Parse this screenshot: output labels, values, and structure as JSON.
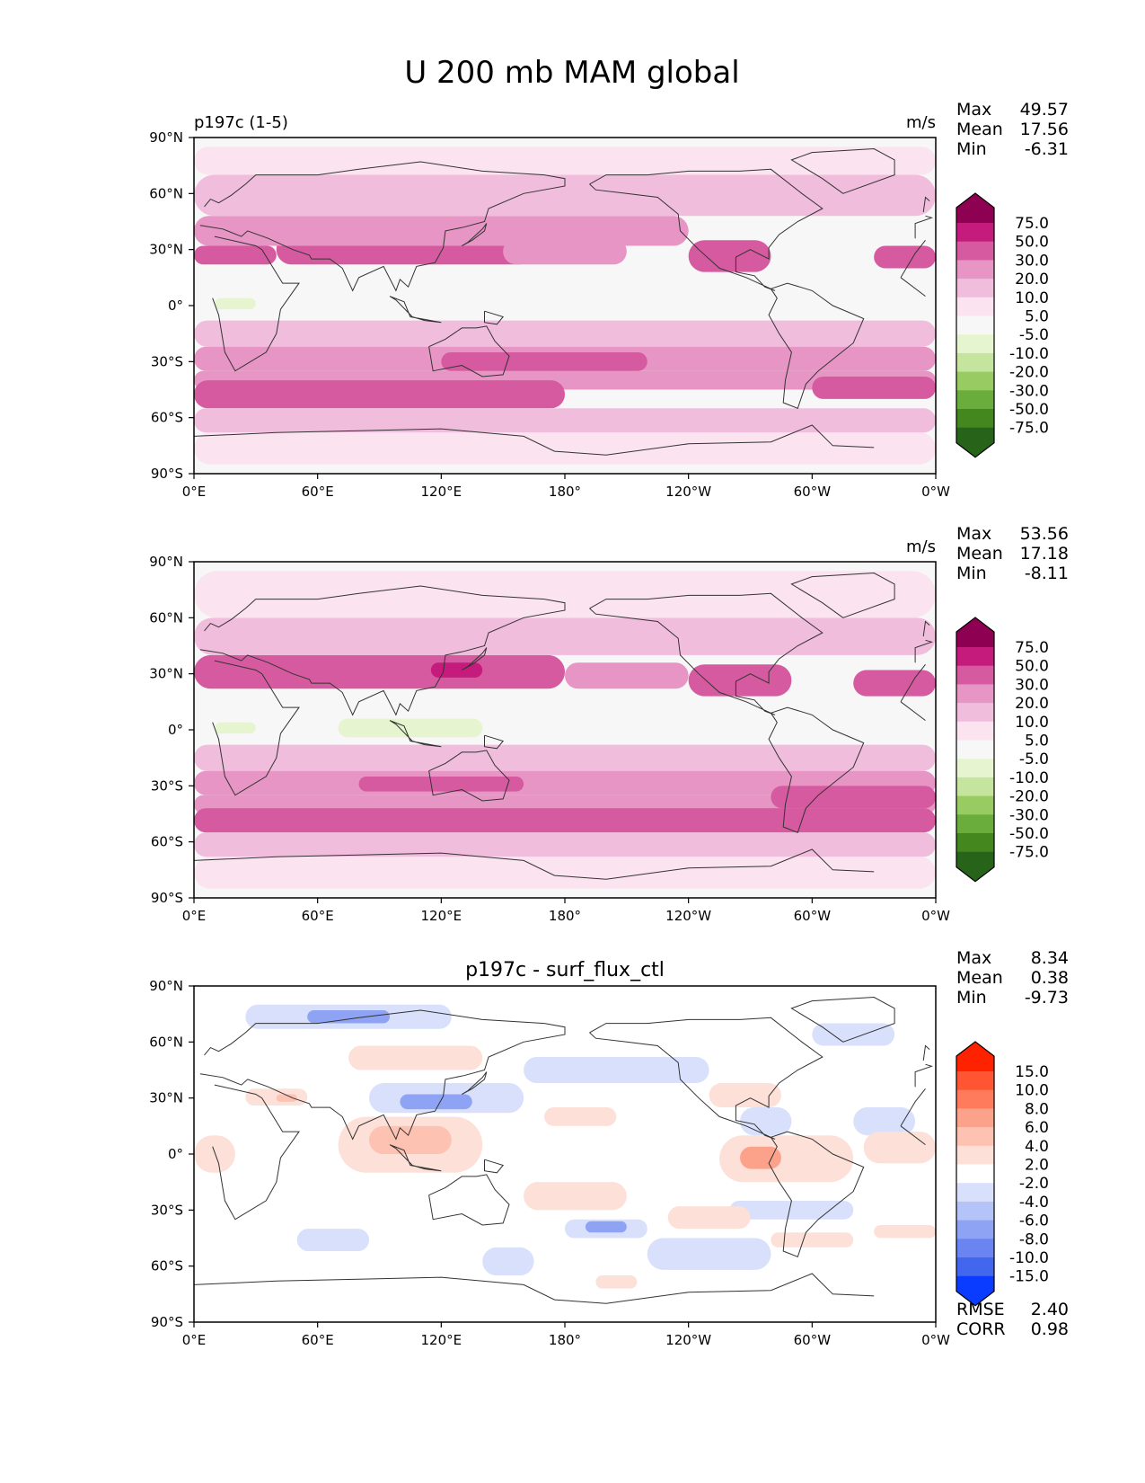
{
  "figure_title": "U 200 mb MAM global",
  "colors": {
    "land_outline": "#333333",
    "axis": "#000000",
    "map_bg_abs": "#f7f7f7",
    "map_bg_diff": "#ffffff"
  },
  "chart_data": [
    {
      "type": "heatmap",
      "panel": "test",
      "title_left": "p197c (1-5)",
      "title_center": "",
      "units": "m/s",
      "xlabel": "",
      "ylabel": "",
      "x_ticks": [
        "0°E",
        "60°E",
        "120°E",
        "180°",
        "120°W",
        "60°W",
        "0°W"
      ],
      "y_ticks": [
        "90°N",
        "60°N",
        "30°N",
        "0°",
        "30°S",
        "60°S",
        "90°S"
      ],
      "xlim": [
        0,
        360
      ],
      "ylim": [
        -90,
        90
      ],
      "stats": [
        {
          "label": "Max",
          "value": "49.57"
        },
        {
          "label": "Mean",
          "value": "17.56"
        },
        {
          "label": "Min",
          "value": "-6.31"
        }
      ],
      "colorbar": {
        "levels": [
          "75.0",
          "50.0",
          "30.0",
          "20.0",
          "10.0",
          "5.0",
          "-5.0",
          "-10.0",
          "-20.0",
          "-30.0",
          "-50.0",
          "-75.0"
        ],
        "colors": [
          "#8e0152",
          "#c51b7d",
          "#d55aa0",
          "#e695c4",
          "#f1bddc",
          "#fbe3f0",
          "#f7f7f7",
          "#e6f5d0",
          "#c5e59f",
          "#98cc62",
          "#6aad3c",
          "#44871f",
          "#276419"
        ],
        "extend": "both"
      },
      "fields": [
        {
          "lon": [
            40,
            165
          ],
          "lat": [
            22,
            38
          ],
          "value": 35
        },
        {
          "lon": [
            0,
            40
          ],
          "lat": [
            22,
            32
          ],
          "value": 35
        },
        {
          "lon": [
            150,
            210
          ],
          "lat": [
            22,
            36
          ],
          "value": 25
        },
        {
          "lon": [
            240,
            280
          ],
          "lat": [
            18,
            35
          ],
          "value": 35
        },
        {
          "lon": [
            330,
            360
          ],
          "lat": [
            20,
            32
          ],
          "value": 35
        },
        {
          "lon": [
            0,
            240
          ],
          "lat": [
            32,
            48
          ],
          "value": 25
        },
        {
          "lon": [
            0,
            360
          ],
          "lat": [
            48,
            70
          ],
          "value": 15
        },
        {
          "lon": [
            0,
            360
          ],
          "lat": [
            70,
            85
          ],
          "value": 7
        },
        {
          "lon": [
            0,
            360
          ],
          "lat": [
            -8,
            12
          ],
          "value": 0
        },
        {
          "lon": [
            10,
            30
          ],
          "lat": [
            -2,
            4
          ],
          "value": -7
        },
        {
          "lon": [
            0,
            360
          ],
          "lat": [
            -22,
            -8
          ],
          "value": 15
        },
        {
          "lon": [
            0,
            360
          ],
          "lat": [
            -35,
            -22
          ],
          "value": 25
        },
        {
          "lon": [
            0,
            360
          ],
          "lat": [
            -45,
            -35
          ],
          "value": 25
        },
        {
          "lon": [
            0,
            180
          ],
          "lat": [
            -55,
            -40
          ],
          "value": 35
        },
        {
          "lon": [
            120,
            220
          ],
          "lat": [
            -35,
            -25
          ],
          "value": 35
        },
        {
          "lon": [
            300,
            360
          ],
          "lat": [
            -50,
            -38
          ],
          "value": 35
        },
        {
          "lon": [
            0,
            360
          ],
          "lat": [
            -68,
            -55
          ],
          "value": 15
        },
        {
          "lon": [
            0,
            360
          ],
          "lat": [
            -85,
            -68
          ],
          "value": 7
        }
      ]
    },
    {
      "type": "heatmap",
      "panel": "reference",
      "title_left": "",
      "title_center": "",
      "units": "m/s",
      "xlabel": "",
      "ylabel": "",
      "x_ticks": [
        "0°E",
        "60°E",
        "120°E",
        "180°",
        "120°W",
        "60°W",
        "0°W"
      ],
      "y_ticks": [
        "90°N",
        "60°N",
        "30°N",
        "0°",
        "30°S",
        "60°S",
        "90°S"
      ],
      "xlim": [
        0,
        360
      ],
      "ylim": [
        -90,
        90
      ],
      "stats": [
        {
          "label": "Max",
          "value": "53.56"
        },
        {
          "label": "Mean",
          "value": "17.18"
        },
        {
          "label": "Min",
          "value": "-8.11"
        }
      ],
      "colorbar": {
        "levels": [
          "75.0",
          "50.0",
          "30.0",
          "20.0",
          "10.0",
          "5.0",
          "-5.0",
          "-10.0",
          "-20.0",
          "-30.0",
          "-50.0",
          "-75.0"
        ],
        "colors": [
          "#8e0152",
          "#c51b7d",
          "#d55aa0",
          "#e695c4",
          "#f1bddc",
          "#fbe3f0",
          "#f7f7f7",
          "#e6f5d0",
          "#c5e59f",
          "#98cc62",
          "#6aad3c",
          "#44871f",
          "#276419"
        ],
        "extend": "both"
      },
      "fields": [
        {
          "lon": [
            0,
            180
          ],
          "lat": [
            22,
            40
          ],
          "value": 35
        },
        {
          "lon": [
            115,
            140
          ],
          "lat": [
            28,
            36
          ],
          "value": 55
        },
        {
          "lon": [
            240,
            290
          ],
          "lat": [
            18,
            35
          ],
          "value": 35
        },
        {
          "lon": [
            320,
            360
          ],
          "lat": [
            18,
            32
          ],
          "value": 35
        },
        {
          "lon": [
            180,
            240
          ],
          "lat": [
            22,
            36
          ],
          "value": 25
        },
        {
          "lon": [
            0,
            360
          ],
          "lat": [
            40,
            60
          ],
          "value": 15
        },
        {
          "lon": [
            0,
            360
          ],
          "lat": [
            60,
            85
          ],
          "value": 7
        },
        {
          "lon": [
            0,
            360
          ],
          "lat": [
            -8,
            12
          ],
          "value": 0
        },
        {
          "lon": [
            70,
            140
          ],
          "lat": [
            -4,
            6
          ],
          "value": -7
        },
        {
          "lon": [
            10,
            30
          ],
          "lat": [
            -2,
            4
          ],
          "value": -7
        },
        {
          "lon": [
            0,
            360
          ],
          "lat": [
            -22,
            -8
          ],
          "value": 15
        },
        {
          "lon": [
            0,
            360
          ],
          "lat": [
            -35,
            -22
          ],
          "value": 25
        },
        {
          "lon": [
            0,
            360
          ],
          "lat": [
            -45,
            -35
          ],
          "value": 25
        },
        {
          "lon": [
            0,
            360
          ],
          "lat": [
            -55,
            -42
          ],
          "value": 35
        },
        {
          "lon": [
            80,
            160
          ],
          "lat": [
            -33,
            -25
          ],
          "value": 35
        },
        {
          "lon": [
            280,
            360
          ],
          "lat": [
            -42,
            -30
          ],
          "value": 35
        },
        {
          "lon": [
            0,
            360
          ],
          "lat": [
            -68,
            -55
          ],
          "value": 15
        },
        {
          "lon": [
            0,
            360
          ],
          "lat": [
            -85,
            -68
          ],
          "value": 7
        }
      ]
    },
    {
      "type": "heatmap",
      "panel": "difference",
      "title_left": "",
      "title_center": "p197c - surf_flux_ctl",
      "units": "",
      "xlabel": "",
      "ylabel": "",
      "x_ticks": [
        "0°E",
        "60°E",
        "120°E",
        "180°",
        "120°W",
        "60°W",
        "0°W"
      ],
      "y_ticks": [
        "90°N",
        "60°N",
        "30°N",
        "0°",
        "30°S",
        "60°S",
        "90°S"
      ],
      "xlim": [
        0,
        360
      ],
      "ylim": [
        -90,
        90
      ],
      "stats": [
        {
          "label": "Max",
          "value": "8.34"
        },
        {
          "label": "Mean",
          "value": "0.38"
        },
        {
          "label": "Min",
          "value": "-9.73"
        }
      ],
      "metrics": [
        {
          "label": "RMSE",
          "value": "2.40"
        },
        {
          "label": "CORR",
          "value": "0.98"
        }
      ],
      "colorbar": {
        "levels": [
          "15.0",
          "10.0",
          "8.0",
          "6.0",
          "4.0",
          "2.0",
          "-2.0",
          "-4.0",
          "-6.0",
          "-8.0",
          "-10.0",
          "-15.0"
        ],
        "colors": [
          "#ff2200",
          "#ff5533",
          "#ff7b5c",
          "#fda28a",
          "#fdc2b2",
          "#fde0d8",
          "#ffffff",
          "#d8e0fb",
          "#b4c3f8",
          "#8ea3f4",
          "#6a84f1",
          "#4266ee",
          "#0a3cff"
        ],
        "extend": "both"
      },
      "fields": [
        {
          "lon": [
            25,
            125
          ],
          "lat": [
            67,
            80
          ],
          "value": -3
        },
        {
          "lon": [
            55,
            95
          ],
          "lat": [
            70,
            77
          ],
          "value": -7
        },
        {
          "lon": [
            75,
            140
          ],
          "lat": [
            45,
            58
          ],
          "value": 3
        },
        {
          "lon": [
            85,
            160
          ],
          "lat": [
            22,
            38
          ],
          "value": -3
        },
        {
          "lon": [
            100,
            135
          ],
          "lat": [
            24,
            32
          ],
          "value": -7
        },
        {
          "lon": [
            25,
            55
          ],
          "lat": [
            26,
            35
          ],
          "value": 3
        },
        {
          "lon": [
            40,
            50
          ],
          "lat": [
            28,
            32
          ],
          "value": 5
        },
        {
          "lon": [
            160,
            250
          ],
          "lat": [
            38,
            52
          ],
          "value": -3
        },
        {
          "lon": [
            170,
            205
          ],
          "lat": [
            15,
            25
          ],
          "value": 3
        },
        {
          "lon": [
            250,
            285
          ],
          "lat": [
            25,
            38
          ],
          "value": 3
        },
        {
          "lon": [
            265,
            290
          ],
          "lat": [
            10,
            25
          ],
          "value": -3
        },
        {
          "lon": [
            320,
            350
          ],
          "lat": [
            10,
            25
          ],
          "value": -3
        },
        {
          "lon": [
            300,
            340
          ],
          "lat": [
            58,
            70
          ],
          "value": -3
        },
        {
          "lon": [
            70,
            140
          ],
          "lat": [
            -10,
            20
          ],
          "value": 3
        },
        {
          "lon": [
            85,
            125
          ],
          "lat": [
            0,
            15
          ],
          "value": 5
        },
        {
          "lon": [
            0,
            20
          ],
          "lat": [
            -10,
            10
          ],
          "value": 3
        },
        {
          "lon": [
            255,
            320
          ],
          "lat": [
            -15,
            10
          ],
          "value": 3
        },
        {
          "lon": [
            265,
            285
          ],
          "lat": [
            -8,
            4
          ],
          "value": 7
        },
        {
          "lon": [
            325,
            360
          ],
          "lat": [
            -5,
            12
          ],
          "value": 3
        },
        {
          "lon": [
            160,
            210
          ],
          "lat": [
            -30,
            -15
          ],
          "value": 3
        },
        {
          "lon": [
            260,
            320
          ],
          "lat": [
            -35,
            -25
          ],
          "value": -3
        },
        {
          "lon": [
            230,
            270
          ],
          "lat": [
            -40,
            -28
          ],
          "value": 3
        },
        {
          "lon": [
            280,
            320
          ],
          "lat": [
            -50,
            -42
          ],
          "value": 3
        },
        {
          "lon": [
            180,
            220
          ],
          "lat": [
            -45,
            -35
          ],
          "value": -3
        },
        {
          "lon": [
            190,
            210
          ],
          "lat": [
            -42,
            -36
          ],
          "value": -7
        },
        {
          "lon": [
            220,
            280
          ],
          "lat": [
            -62,
            -45
          ],
          "value": -3
        },
        {
          "lon": [
            50,
            85
          ],
          "lat": [
            -52,
            -40
          ],
          "value": -3
        },
        {
          "lon": [
            140,
            165
          ],
          "lat": [
            -65,
            -50
          ],
          "value": -3
        },
        {
          "lon": [
            330,
            360
          ],
          "lat": [
            -45,
            -38
          ],
          "value": 3
        },
        {
          "lon": [
            195,
            215
          ],
          "lat": [
            -72,
            -65
          ],
          "value": 3
        }
      ]
    }
  ]
}
